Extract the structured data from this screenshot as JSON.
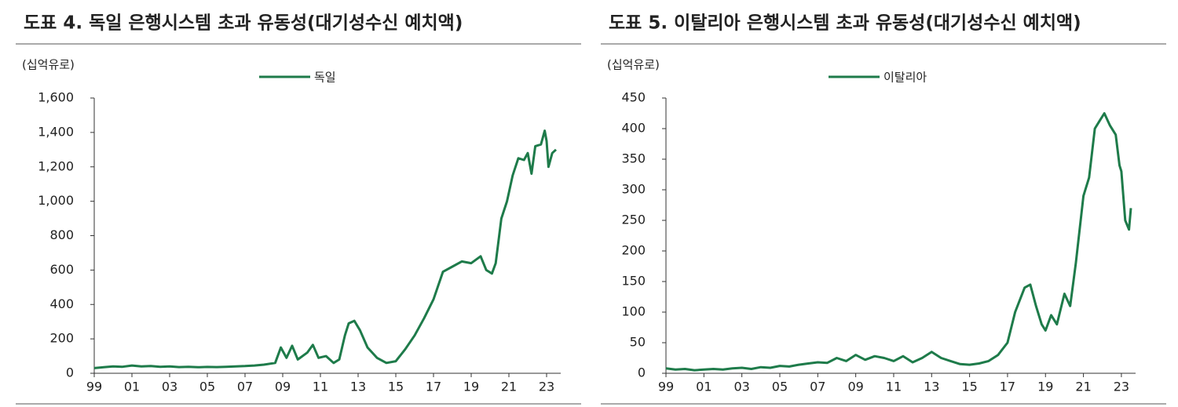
{
  "chart_data": [
    {
      "type": "line",
      "title": "도표 4. 독일 은행시스템 초과 유동성(대기성수신 예치액)",
      "y_label": "(십억유로)",
      "x": [
        1999,
        1999.5,
        2000,
        2000.5,
        2001,
        2001.5,
        2002,
        2002.5,
        2003,
        2003.5,
        2004,
        2004.5,
        2005,
        2005.5,
        2006,
        2006.5,
        2007,
        2007.5,
        2008,
        2008.6,
        2008.9,
        2009.2,
        2009.5,
        2009.8,
        2010.3,
        2010.6,
        2010.9,
        2011.3,
        2011.7,
        2012,
        2012.3,
        2012.5,
        2012.8,
        2013.1,
        2013.5,
        2014,
        2014.5,
        2015,
        2015.5,
        2016,
        2016.5,
        2017,
        2017.5,
        2018,
        2018.5,
        2019,
        2019.5,
        2019.8,
        2020.1,
        2020.3,
        2020.6,
        2020.9,
        2021.2,
        2021.5,
        2021.8,
        2022,
        2022.2,
        2022.4,
        2022.7,
        2022.9,
        2023,
        2023.1,
        2023.3,
        2023.5
      ],
      "series": [
        {
          "name": "독일",
          "color": "#1e7b4a",
          "values": [
            30,
            35,
            40,
            38,
            45,
            40,
            42,
            38,
            40,
            36,
            38,
            35,
            37,
            36,
            38,
            40,
            42,
            45,
            50,
            60,
            150,
            90,
            160,
            80,
            120,
            165,
            90,
            100,
            60,
            80,
            220,
            290,
            305,
            250,
            150,
            90,
            60,
            70,
            140,
            220,
            320,
            430,
            590,
            620,
            650,
            640,
            680,
            600,
            580,
            640,
            900,
            1000,
            1150,
            1250,
            1240,
            1280,
            1160,
            1320,
            1330,
            1410,
            1350,
            1200,
            1280,
            1300
          ]
        }
      ],
      "xlim": [
        1999,
        2023.5
      ],
      "xticks": [
        {
          "value": 1999,
          "label": "99"
        },
        {
          "value": 2001,
          "label": "01"
        },
        {
          "value": 2003,
          "label": "03"
        },
        {
          "value": 2005,
          "label": "05"
        },
        {
          "value": 2007,
          "label": "07"
        },
        {
          "value": 2009,
          "label": "09"
        },
        {
          "value": 2011,
          "label": "11"
        },
        {
          "value": 2013,
          "label": "13"
        },
        {
          "value": 2015,
          "label": "15"
        },
        {
          "value": 2017,
          "label": "17"
        },
        {
          "value": 2019,
          "label": "19"
        },
        {
          "value": 2021,
          "label": "21"
        },
        {
          "value": 2023,
          "label": "23"
        }
      ],
      "ylim": [
        0,
        1600
      ],
      "yticks": [
        0,
        200,
        400,
        600,
        800,
        {
          "value": 1000,
          "label": "1,000"
        },
        {
          "value": 1200,
          "label": "1,200"
        },
        {
          "value": 1400,
          "label": "1,400"
        },
        {
          "value": 1600,
          "label": "1,600"
        }
      ]
    },
    {
      "type": "line",
      "title": "도표 5. 이탈리아 은행시스템 초과 유동성(대기성수신 예치액)",
      "y_label": "(십억유로)",
      "x": [
        1999,
        1999.5,
        2000,
        2000.5,
        2001,
        2001.5,
        2002,
        2002.5,
        2003,
        2003.5,
        2004,
        2004.5,
        2005,
        2005.5,
        2006,
        2006.5,
        2007,
        2007.5,
        2008,
        2008.5,
        2009,
        2009.5,
        2010,
        2010.5,
        2011,
        2011.5,
        2012,
        2012.5,
        2013,
        2013.5,
        2014,
        2014.5,
        2015,
        2015.5,
        2016,
        2016.5,
        2017,
        2017.4,
        2017.9,
        2018.2,
        2018.5,
        2018.8,
        2019,
        2019.3,
        2019.6,
        2020,
        2020.3,
        2020.6,
        2021,
        2021.3,
        2021.6,
        2021.9,
        2022.1,
        2022.4,
        2022.7,
        2022.9,
        2023,
        2023.2,
        2023.4,
        2023.5
      ],
      "series": [
        {
          "name": "이탈리아",
          "color": "#1e7b4a",
          "values": [
            8,
            6,
            7,
            5,
            6,
            7,
            6,
            8,
            9,
            7,
            10,
            9,
            12,
            11,
            14,
            16,
            18,
            17,
            25,
            20,
            30,
            22,
            28,
            25,
            20,
            28,
            18,
            25,
            35,
            25,
            20,
            15,
            14,
            16,
            20,
            30,
            50,
            100,
            140,
            145,
            110,
            80,
            70,
            95,
            80,
            130,
            110,
            180,
            290,
            320,
            400,
            415,
            425,
            405,
            390,
            340,
            330,
            250,
            235,
            270
          ]
        }
      ],
      "xlim": [
        1999,
        2023.5
      ],
      "xticks": [
        {
          "value": 1999,
          "label": "99"
        },
        {
          "value": 2001,
          "label": "01"
        },
        {
          "value": 2003,
          "label": "03"
        },
        {
          "value": 2005,
          "label": "05"
        },
        {
          "value": 2007,
          "label": "07"
        },
        {
          "value": 2009,
          "label": "09"
        },
        {
          "value": 2011,
          "label": "11"
        },
        {
          "value": 2013,
          "label": "13"
        },
        {
          "value": 2015,
          "label": "15"
        },
        {
          "value": 2017,
          "label": "17"
        },
        {
          "value": 2019,
          "label": "19"
        },
        {
          "value": 2021,
          "label": "21"
        },
        {
          "value": 2023,
          "label": "23"
        }
      ],
      "ylim": [
        0,
        450
      ],
      "yticks": [
        0,
        50,
        100,
        150,
        200,
        250,
        300,
        350,
        400,
        450
      ]
    }
  ]
}
